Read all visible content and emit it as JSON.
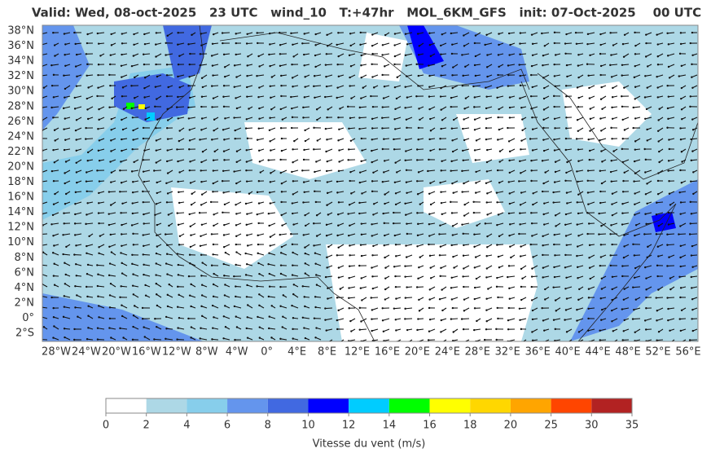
{
  "header": {
    "title": "Valid: Wed, 08-oct-2025   23 UTC   wind_10   T:+47hr   MOL_6KM_GFS   init: 07-Oct-2025    00 UTC"
  },
  "map": {
    "lat_labels": [
      "38°N",
      "36°N",
      "34°N",
      "32°N",
      "30°N",
      "28°N",
      "26°N",
      "24°N",
      "22°N",
      "20°N",
      "18°N",
      "16°N",
      "14°N",
      "12°N",
      "10°N",
      "8°N",
      "6°N",
      "4°N",
      "2°N",
      "0°",
      "2°S"
    ],
    "lon_labels": [
      "28°W",
      "24°W",
      "20°W",
      "16°W",
      "12°W",
      "8°W",
      "4°W",
      "0°",
      "4°E",
      "8°E",
      "12°E",
      "16°E",
      "20°E",
      "24°E",
      "28°E",
      "32°E",
      "36°E",
      "40°E",
      "44°E",
      "48°E",
      "52°E",
      "56°E"
    ]
  },
  "colorbar": {
    "ticks": [
      0,
      2,
      4,
      6,
      8,
      10,
      12,
      14,
      16,
      18,
      20,
      25,
      30,
      35
    ],
    "colors": [
      "#ffffff",
      "#add8e6",
      "#87ceeb",
      "#6495ed",
      "#4169e1",
      "#0000ff",
      "#00ccff",
      "#00ff00",
      "#ffff00",
      "#ffd700",
      "#ffa500",
      "#ff4500",
      "#b22222"
    ],
    "label": "Vitesse du vent (m/s)"
  }
}
